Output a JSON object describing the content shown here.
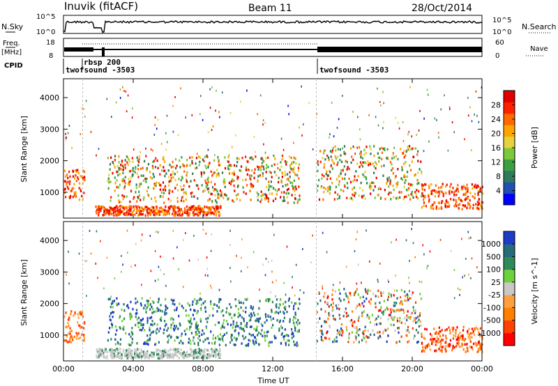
{
  "header": {
    "station": "Inuvik (fitACF)",
    "beam": "Beam 11",
    "date": "28/Oct/2014"
  },
  "noise_panel": {
    "left_label": "N.Sky",
    "left_ticks": [
      "10^5",
      "10^0"
    ],
    "right_ticks": [
      "10^5",
      "10^0"
    ],
    "right_label": "N.Search"
  },
  "freq_panel": {
    "left_label": "Freq.",
    "left_unit": "[MHz]",
    "left_ticks": [
      "18",
      "8"
    ],
    "right_ticks": [
      "60",
      "0"
    ],
    "right_label": "Nave"
  },
  "cpid_panel": {
    "label": "CPID",
    "modes": [
      {
        "name": "twofsound -3503",
        "start_hour": 0
      },
      {
        "name": "rbsp 200",
        "start_hour": 1.1
      },
      {
        "name": "twofsound -3503",
        "start_hour": 14.5
      }
    ]
  },
  "chart_data": [
    {
      "type": "heatmap",
      "title": "Power",
      "ylabel": "Slant Range [km]",
      "xlabel": "Time UT",
      "xlim_hours": [
        0,
        24
      ],
      "ylim": [
        180,
        4600
      ],
      "x_ticks": [
        "00:00",
        "04:00",
        "08:00",
        "12:00",
        "16:00",
        "20:00",
        "00:00"
      ],
      "y_ticks": [
        1000,
        2000,
        3000,
        4000
      ],
      "colorbar": {
        "label": "Power [dB]",
        "ticks": [
          "28",
          "24",
          "20",
          "16",
          "12",
          "8",
          "4"
        ],
        "colors": [
          "#0000ff",
          "#2050b0",
          "#2e7a5a",
          "#3aa040",
          "#7dc83c",
          "#e6d23c",
          "#ffa500",
          "#ff6a00",
          "#ff2000",
          "#e00000"
        ]
      },
      "echo_regions": [
        {
          "t_start": 0.0,
          "t_end": 1.2,
          "r_start": 800,
          "r_end": 1800,
          "level": "high"
        },
        {
          "t_start": 1.8,
          "t_end": 9.0,
          "r_start": 300,
          "r_end": 600,
          "level": "high"
        },
        {
          "t_start": 2.5,
          "t_end": 13.5,
          "r_start": 700,
          "r_end": 2200,
          "level": "mixed"
        },
        {
          "t_start": 14.5,
          "t_end": 20.5,
          "r_start": 800,
          "r_end": 2500,
          "level": "mixed"
        },
        {
          "t_start": 20.5,
          "t_end": 24.0,
          "r_start": 500,
          "r_end": 1300,
          "level": "high"
        }
      ]
    },
    {
      "type": "heatmap",
      "title": "Velocity",
      "ylabel": "Slant Range [km]",
      "xlabel": "Time UT",
      "xlim_hours": [
        0,
        24
      ],
      "ylim": [
        180,
        4600
      ],
      "x_ticks": [
        "00:00",
        "04:00",
        "08:00",
        "12:00",
        "16:00",
        "20:00",
        "00:00"
      ],
      "y_ticks": [
        1000,
        2000,
        3000,
        4000
      ],
      "colorbar": {
        "label": "Velocity [m s^-1]",
        "ticks": [
          "1000",
          "500",
          "100",
          "25",
          "-25",
          "-100",
          "-500",
          "-1000"
        ],
        "colors": [
          "#ff0000",
          "#ff4000",
          "#ff7f00",
          "#ffa040",
          "#c8c8c8",
          "#6ed23c",
          "#2e8a5a",
          "#286b7a",
          "#1e3cc8"
        ]
      },
      "echo_regions": [
        {
          "t_start": 0.0,
          "t_end": 1.2,
          "r_start": 800,
          "r_end": 1800,
          "level": "toward_negative"
        },
        {
          "t_start": 1.8,
          "t_end": 9.0,
          "r_start": 300,
          "r_end": 600,
          "level": "ground_scatter"
        },
        {
          "t_start": 2.5,
          "t_end": 13.5,
          "r_start": 700,
          "r_end": 2200,
          "level": "positive"
        },
        {
          "t_start": 14.5,
          "t_end": 20.5,
          "r_start": 800,
          "r_end": 2500,
          "level": "mixed"
        },
        {
          "t_start": 20.5,
          "t_end": 24.0,
          "r_start": 500,
          "r_end": 1300,
          "level": "negative"
        }
      ]
    }
  ]
}
